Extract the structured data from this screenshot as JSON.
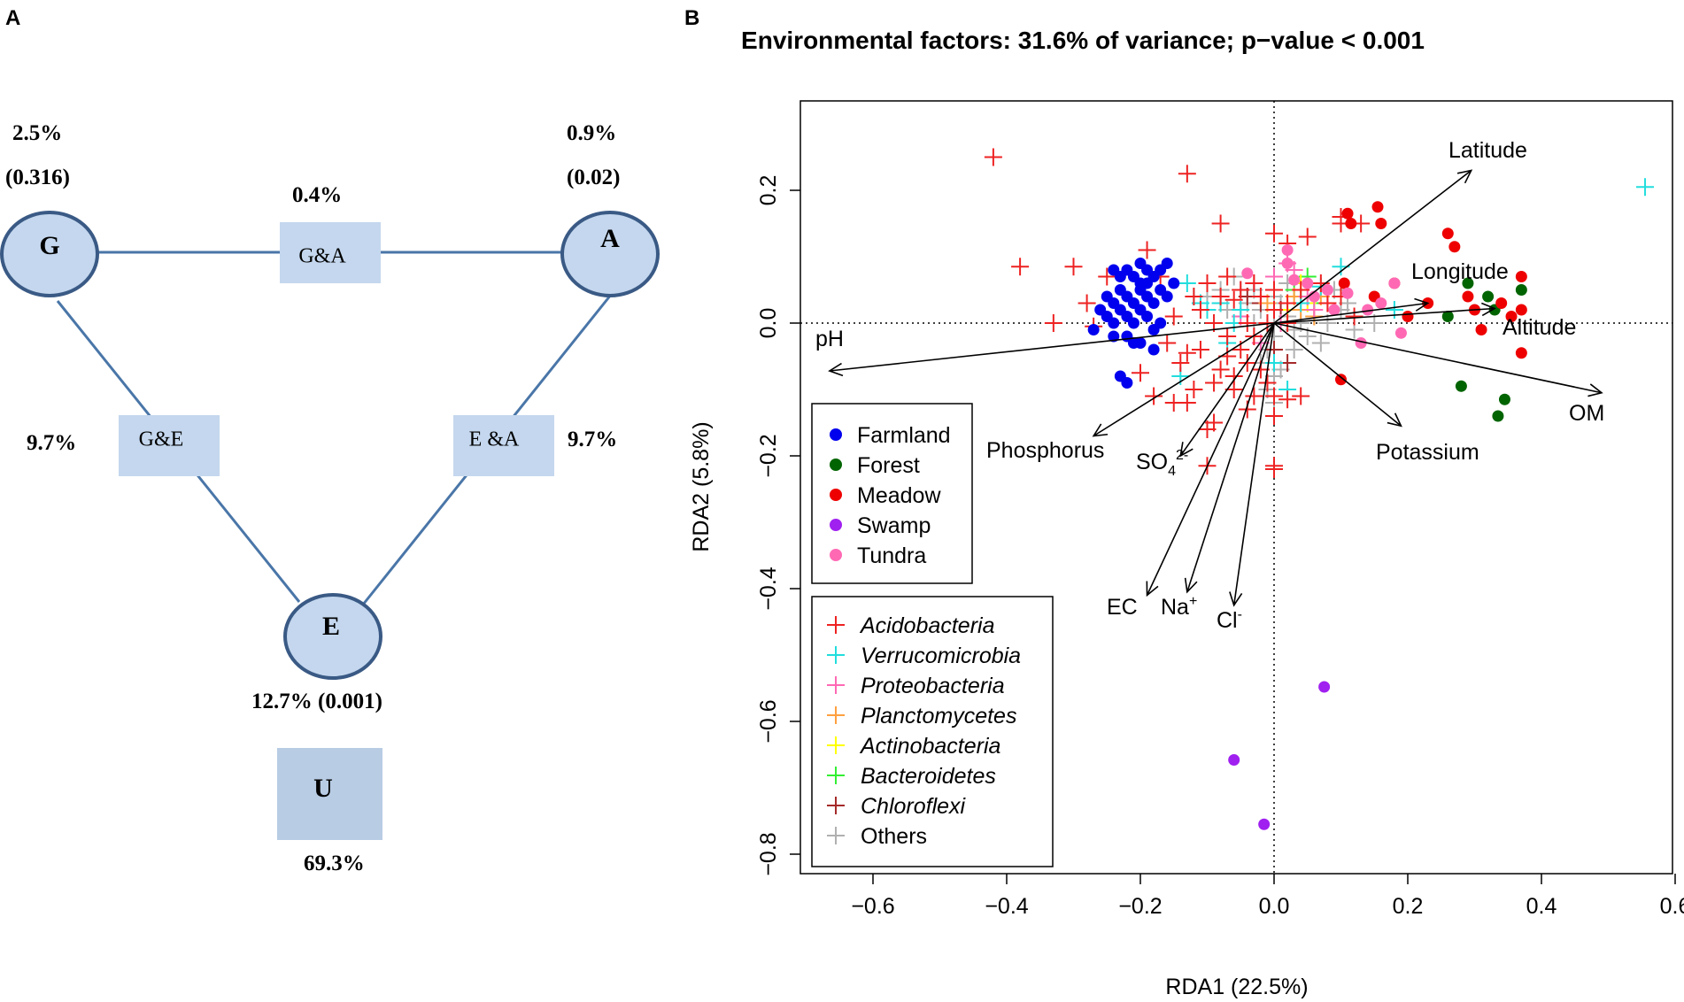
{
  "panels": {
    "a_label": "A",
    "b_label": "B"
  },
  "venn": {
    "nodes": {
      "g": "G",
      "a": "A",
      "e": "E",
      "u": "U"
    },
    "boxes": {
      "ga": "G&A",
      "ge": "G&E",
      "ea": "E &A"
    },
    "stats": {
      "g_pct": "2.5%",
      "g_p": "(0.316)",
      "a_pct": "0.9%",
      "a_p": "(0.02)",
      "ga_pct": "0.4%",
      "ge_pct": "9.7%",
      "ea_pct": "9.7%",
      "e_stat": "12.7% (0.001)",
      "u_pct": "69.3%"
    }
  },
  "chart_data": {
    "type": "scatter",
    "title": "Environmental factors: 31.6% of variance; p−value < 0.001",
    "xlabel": "RDA1 (22.5%)",
    "ylabel": "RDA2 (5.8%)",
    "xlim": [
      -0.7,
      0.6
    ],
    "ylim": [
      -0.85,
      0.34
    ],
    "x_ticks": [
      -0.6,
      -0.4,
      -0.2,
      0.0,
      0.2,
      0.4,
      0.6
    ],
    "x_tick_labels": [
      "−0.6",
      "−0.4",
      "−0.2",
      "0.0",
      "0.2",
      "0.4",
      "0.6"
    ],
    "y_ticks": [
      -0.8,
      -0.6,
      -0.4,
      -0.2,
      0.0,
      0.2
    ],
    "y_tick_labels": [
      "−0.8",
      "−0.6",
      "−0.4",
      "−0.2",
      "0.0",
      "0.2"
    ],
    "arrows": [
      {
        "name": "Latitude",
        "x": 0.295,
        "y": 0.23
      },
      {
        "name": "Longitude",
        "x": 0.23,
        "y": 0.03
      },
      {
        "name": "Altitude",
        "x": 0.33,
        "y": 0.022
      },
      {
        "name": "OM",
        "x": 0.49,
        "y": -0.105
      },
      {
        "name": "Potassium",
        "x": 0.19,
        "y": -0.155
      },
      {
        "name": "pH",
        "x": -0.665,
        "y": -0.072
      },
      {
        "name": "Phosphorus",
        "x": -0.27,
        "y": -0.17
      },
      {
        "name": "SO4",
        "x": -0.14,
        "y": -0.2
      },
      {
        "name": "EC",
        "x": -0.19,
        "y": -0.41
      },
      {
        "name": "Na",
        "x": -0.13,
        "y": -0.405
      },
      {
        "name": "Cl",
        "x": -0.06,
        "y": -0.425
      }
    ],
    "vector_labels": {
      "latitude": "Latitude",
      "longitude": "Longitude",
      "altitude": "Altitude",
      "om": "OM",
      "potassium": "Potassium",
      "ph": "pH",
      "phosphorus": "Phosphorus",
      "so4": "SO",
      "so4_sub": "4",
      "so4_sup": "2-",
      "ec": "EC",
      "na": "Na",
      "na_sup": "+",
      "cl": "Cl",
      "cl_sup": "-"
    },
    "site_legend": [
      {
        "name": "Farmland",
        "color": "#0000ee"
      },
      {
        "name": "Forest",
        "color": "#006400"
      },
      {
        "name": "Meadow",
        "color": "#ee0000"
      },
      {
        "name": "Swamp",
        "color": "#a020f0"
      },
      {
        "name": "Tundra",
        "color": "#ff69b4"
      }
    ],
    "taxa_legend": [
      {
        "name": "Acidobacteria",
        "color": "#ee2222"
      },
      {
        "name": "Verrucomicrobia",
        "color": "#22dddd"
      },
      {
        "name": "Proteobacteria",
        "color": "#ff69b4"
      },
      {
        "name": "Planctomycetes",
        "color": "#ffa040"
      },
      {
        "name": "Actinobacteria",
        "color": "#ffff00"
      },
      {
        "name": "Bacteroidetes",
        "color": "#33ee33"
      },
      {
        "name": "Chloroflexi",
        "color": "#a52a2a"
      },
      {
        "name": "Others",
        "color": "#b0b0b0"
      }
    ],
    "sites": {
      "Farmland": [
        [
          -0.24,
          0.08
        ],
        [
          -0.23,
          0.07
        ],
        [
          -0.22,
          0.08
        ],
        [
          -0.21,
          0.07
        ],
        [
          -0.2,
          0.09
        ],
        [
          -0.19,
          0.08
        ],
        [
          -0.18,
          0.07
        ],
        [
          -0.17,
          0.08
        ],
        [
          -0.16,
          0.09
        ],
        [
          -0.15,
          0.06
        ],
        [
          -0.25,
          0.04
        ],
        [
          -0.24,
          0.03
        ],
        [
          -0.23,
          0.05
        ],
        [
          -0.22,
          0.04
        ],
        [
          -0.21,
          0.03
        ],
        [
          -0.2,
          0.05
        ],
        [
          -0.19,
          0.04
        ],
        [
          -0.18,
          0.03
        ],
        [
          -0.17,
          0.05
        ],
        [
          -0.16,
          0.04
        ],
        [
          -0.26,
          0.02
        ],
        [
          -0.25,
          0.01
        ],
        [
          -0.24,
          0.0
        ],
        [
          -0.23,
          0.02
        ],
        [
          -0.22,
          0.01
        ],
        [
          -0.21,
          0.0
        ],
        [
          -0.2,
          0.02
        ],
        [
          -0.19,
          0.01
        ],
        [
          -0.18,
          -0.01
        ],
        [
          -0.17,
          0.0
        ],
        [
          -0.24,
          -0.02
        ],
        [
          -0.22,
          -0.02
        ],
        [
          -0.2,
          -0.03
        ],
        [
          -0.18,
          -0.04
        ],
        [
          -0.23,
          -0.08
        ],
        [
          -0.22,
          -0.09
        ],
        [
          -0.2,
          0.06
        ],
        [
          -0.19,
          0.06
        ],
        [
          -0.27,
          -0.01
        ],
        [
          -0.21,
          -0.03
        ]
      ],
      "Forest": [
        [
          0.26,
          0.01
        ],
        [
          0.29,
          0.06
        ],
        [
          0.33,
          0.02
        ],
        [
          0.28,
          -0.095
        ],
        [
          0.335,
          -0.14
        ],
        [
          0.345,
          -0.115
        ],
        [
          0.37,
          0.05
        ]
      ],
      "Meadow": [
        [
          0.11,
          0.165
        ],
        [
          0.115,
          0.15
        ],
        [
          0.155,
          0.175
        ],
        [
          0.16,
          0.15
        ],
        [
          0.105,
          0.06
        ],
        [
          0.15,
          0.04
        ],
        [
          0.18,
          0.06
        ],
        [
          0.23,
          0.03
        ],
        [
          0.26,
          0.135
        ],
        [
          0.27,
          0.115
        ],
        [
          0.29,
          0.04
        ],
        [
          0.3,
          0.02
        ],
        [
          0.34,
          0.03
        ],
        [
          0.355,
          0.01
        ],
        [
          0.37,
          0.07
        ],
        [
          0.37,
          0.02
        ],
        [
          0.37,
          -0.045
        ],
        [
          0.31,
          -0.01
        ],
        [
          0.2,
          0.01
        ],
        [
          0.1,
          -0.085
        ]
      ],
      "Swamp": [
        [
          0.075,
          -0.548
        ],
        [
          -0.06,
          -0.658
        ],
        [
          -0.015,
          -0.755
        ]
      ],
      "Tundra": [
        [
          -0.04,
          0.075
        ],
        [
          0.02,
          0.11
        ],
        [
          0.02,
          0.09
        ],
        [
          0.03,
          0.065
        ],
        [
          0.05,
          0.06
        ],
        [
          0.06,
          0.04
        ],
        [
          0.09,
          0.02
        ],
        [
          0.11,
          0.045
        ],
        [
          0.18,
          0.06
        ],
        [
          0.19,
          -0.015
        ],
        [
          0.13,
          -0.03
        ],
        [
          0.14,
          0.02
        ],
        [
          0.16,
          0.03
        ],
        [
          0.08,
          0.05
        ]
      ],
      "Forest_dark": [
        [
          0.32,
          0.04
        ]
      ]
    },
    "taxa": {
      "Acidobacteria": [
        [
          -0.42,
          0.25
        ],
        [
          -0.13,
          0.225
        ],
        [
          -0.08,
          0.15
        ],
        [
          -0.38,
          0.085
        ],
        [
          -0.3,
          0.085
        ],
        [
          -0.33,
          0.0
        ],
        [
          -0.27,
          -0.005
        ],
        [
          -0.2,
          -0.075
        ],
        [
          -0.18,
          -0.11
        ],
        [
          -0.09,
          -0.15
        ],
        [
          -0.1,
          -0.16
        ],
        [
          -0.1,
          -0.215
        ],
        [
          0.0,
          -0.22
        ],
        [
          0.0,
          -0.215
        ],
        [
          -0.15,
          -0.12
        ],
        [
          -0.13,
          -0.12
        ],
        [
          -0.12,
          -0.1
        ],
        [
          -0.09,
          -0.09
        ],
        [
          -0.08,
          -0.07
        ],
        [
          -0.07,
          -0.05
        ],
        [
          -0.06,
          -0.08
        ],
        [
          -0.05,
          -0.04
        ],
        [
          -0.04,
          -0.06
        ],
        [
          -0.03,
          -0.02
        ],
        [
          -0.02,
          -0.07
        ],
        [
          -0.01,
          -0.09
        ],
        [
          0.0,
          -0.11
        ],
        [
          0.0,
          -0.14
        ],
        [
          -0.03,
          -0.11
        ],
        [
          -0.04,
          -0.13
        ],
        [
          -0.06,
          -0.1
        ],
        [
          -0.1,
          0.06
        ],
        [
          -0.08,
          0.04
        ],
        [
          -0.07,
          0.07
        ],
        [
          -0.05,
          0.05
        ],
        [
          -0.03,
          0.06
        ],
        [
          -0.02,
          0.04
        ],
        [
          0.0,
          0.05
        ],
        [
          0.02,
          0.03
        ],
        [
          0.04,
          0.05
        ],
        [
          -0.12,
          0.04
        ],
        [
          -0.11,
          0.02
        ],
        [
          -0.09,
          0.0
        ],
        [
          -0.07,
          -0.02
        ],
        [
          -0.15,
          0.01
        ],
        [
          -0.16,
          -0.03
        ],
        [
          -0.17,
          0.07
        ],
        [
          0.1,
          0.16
        ],
        [
          0.1,
          0.15
        ],
        [
          0.13,
          0.15
        ],
        [
          0.05,
          0.13
        ],
        [
          0.02,
          0.12
        ],
        [
          0.0,
          0.135
        ],
        [
          0.08,
          0.03
        ],
        [
          0.1,
          0.04
        ],
        [
          0.12,
          0.01
        ],
        [
          -0.06,
          0.035
        ],
        [
          -0.04,
          0.0
        ],
        [
          0.0,
          0.02
        ],
        [
          -0.01,
          0.0
        ],
        [
          0.02,
          0.0
        ],
        [
          -0.13,
          -0.045
        ],
        [
          -0.11,
          -0.04
        ],
        [
          0.04,
          -0.11
        ],
        [
          0.02,
          -0.115
        ],
        [
          0.07,
          0.06
        ],
        [
          -0.19,
          0.11
        ],
        [
          -0.25,
          0.07
        ],
        [
          -0.28,
          0.03
        ],
        [
          -0.14,
          -0.06
        ]
      ],
      "Verrucomicrobia": [
        [
          0.555,
          0.205
        ],
        [
          0.1,
          0.085
        ],
        [
          0.07,
          0.055
        ],
        [
          -0.13,
          0.06
        ],
        [
          -0.12,
          0.04
        ],
        [
          -0.11,
          0.03
        ],
        [
          -0.1,
          0.02
        ],
        [
          -0.14,
          -0.08
        ],
        [
          -0.07,
          -0.03
        ],
        [
          -0.06,
          0.0
        ],
        [
          0.02,
          -0.1
        ],
        [
          0.0,
          -0.06
        ],
        [
          0.04,
          0.03
        ],
        [
          0.18,
          0.02
        ],
        [
          -0.08,
          0.03
        ],
        [
          -0.05,
          0.02
        ]
      ],
      "Proteobacteria": [
        [
          -0.03,
          0.06
        ],
        [
          0.0,
          0.07
        ],
        [
          0.02,
          0.09
        ],
        [
          0.05,
          0.04
        ],
        [
          0.08,
          0.03
        ],
        [
          0.01,
          0.0
        ],
        [
          -0.02,
          -0.03
        ],
        [
          -0.05,
          0.01
        ],
        [
          0.03,
          0.08
        ],
        [
          0.06,
          0.02
        ]
      ],
      "Planctomycetes": [
        [
          0.03,
          0.04
        ],
        [
          0.04,
          0.02
        ],
        [
          -0.01,
          0.03
        ],
        [
          0.06,
          0.01
        ],
        [
          0.07,
          0.04
        ]
      ],
      "Actinobacteria": [
        [
          0.02,
          0.02
        ],
        [
          0.04,
          0.06
        ],
        [
          0.05,
          0.03
        ]
      ],
      "Bacteroidetes": [
        [
          0.03,
          0.05
        ],
        [
          0.05,
          0.07
        ],
        [
          0.06,
          0.03
        ],
        [
          0.04,
          0.04
        ]
      ],
      "Chloroflexi": [
        [
          -0.02,
          0.03
        ],
        [
          0.0,
          -0.04
        ],
        [
          0.01,
          0.02
        ],
        [
          -0.04,
          0.04
        ],
        [
          0.02,
          -0.06
        ]
      ],
      "Others": [
        [
          -0.02,
          0.02
        ],
        [
          -0.01,
          0.0
        ],
        [
          0.0,
          -0.02
        ],
        [
          0.01,
          0.03
        ],
        [
          0.02,
          0.01
        ],
        [
          0.03,
          -0.01
        ],
        [
          -0.03,
          0.0
        ],
        [
          -0.04,
          0.03
        ],
        [
          -0.05,
          0.05
        ],
        [
          0.04,
          0.0
        ],
        [
          0.05,
          -0.02
        ],
        [
          0.06,
          0.01
        ],
        [
          0.0,
          0.04
        ],
        [
          -0.01,
          -0.04
        ],
        [
          0.0,
          -0.08
        ],
        [
          -0.01,
          -0.1
        ],
        [
          0.0,
          -0.12
        ],
        [
          -0.02,
          -0.06
        ],
        [
          0.08,
          0.0
        ],
        [
          0.1,
          0.02
        ],
        [
          0.12,
          -0.01
        ],
        [
          0.15,
          0.0
        ],
        [
          -0.07,
          0.02
        ],
        [
          -0.08,
          0.05
        ],
        [
          -0.06,
          0.07
        ],
        [
          -0.1,
          0.04
        ],
        [
          0.02,
          0.06
        ],
        [
          0.03,
          -0.04
        ],
        [
          0.01,
          -0.07
        ],
        [
          0.07,
          -0.03
        ],
        [
          0.09,
          0.05
        ],
        [
          0.11,
          0.03
        ],
        [
          0.0,
          0.0
        ],
        [
          -0.03,
          0.05
        ]
      ]
    }
  }
}
